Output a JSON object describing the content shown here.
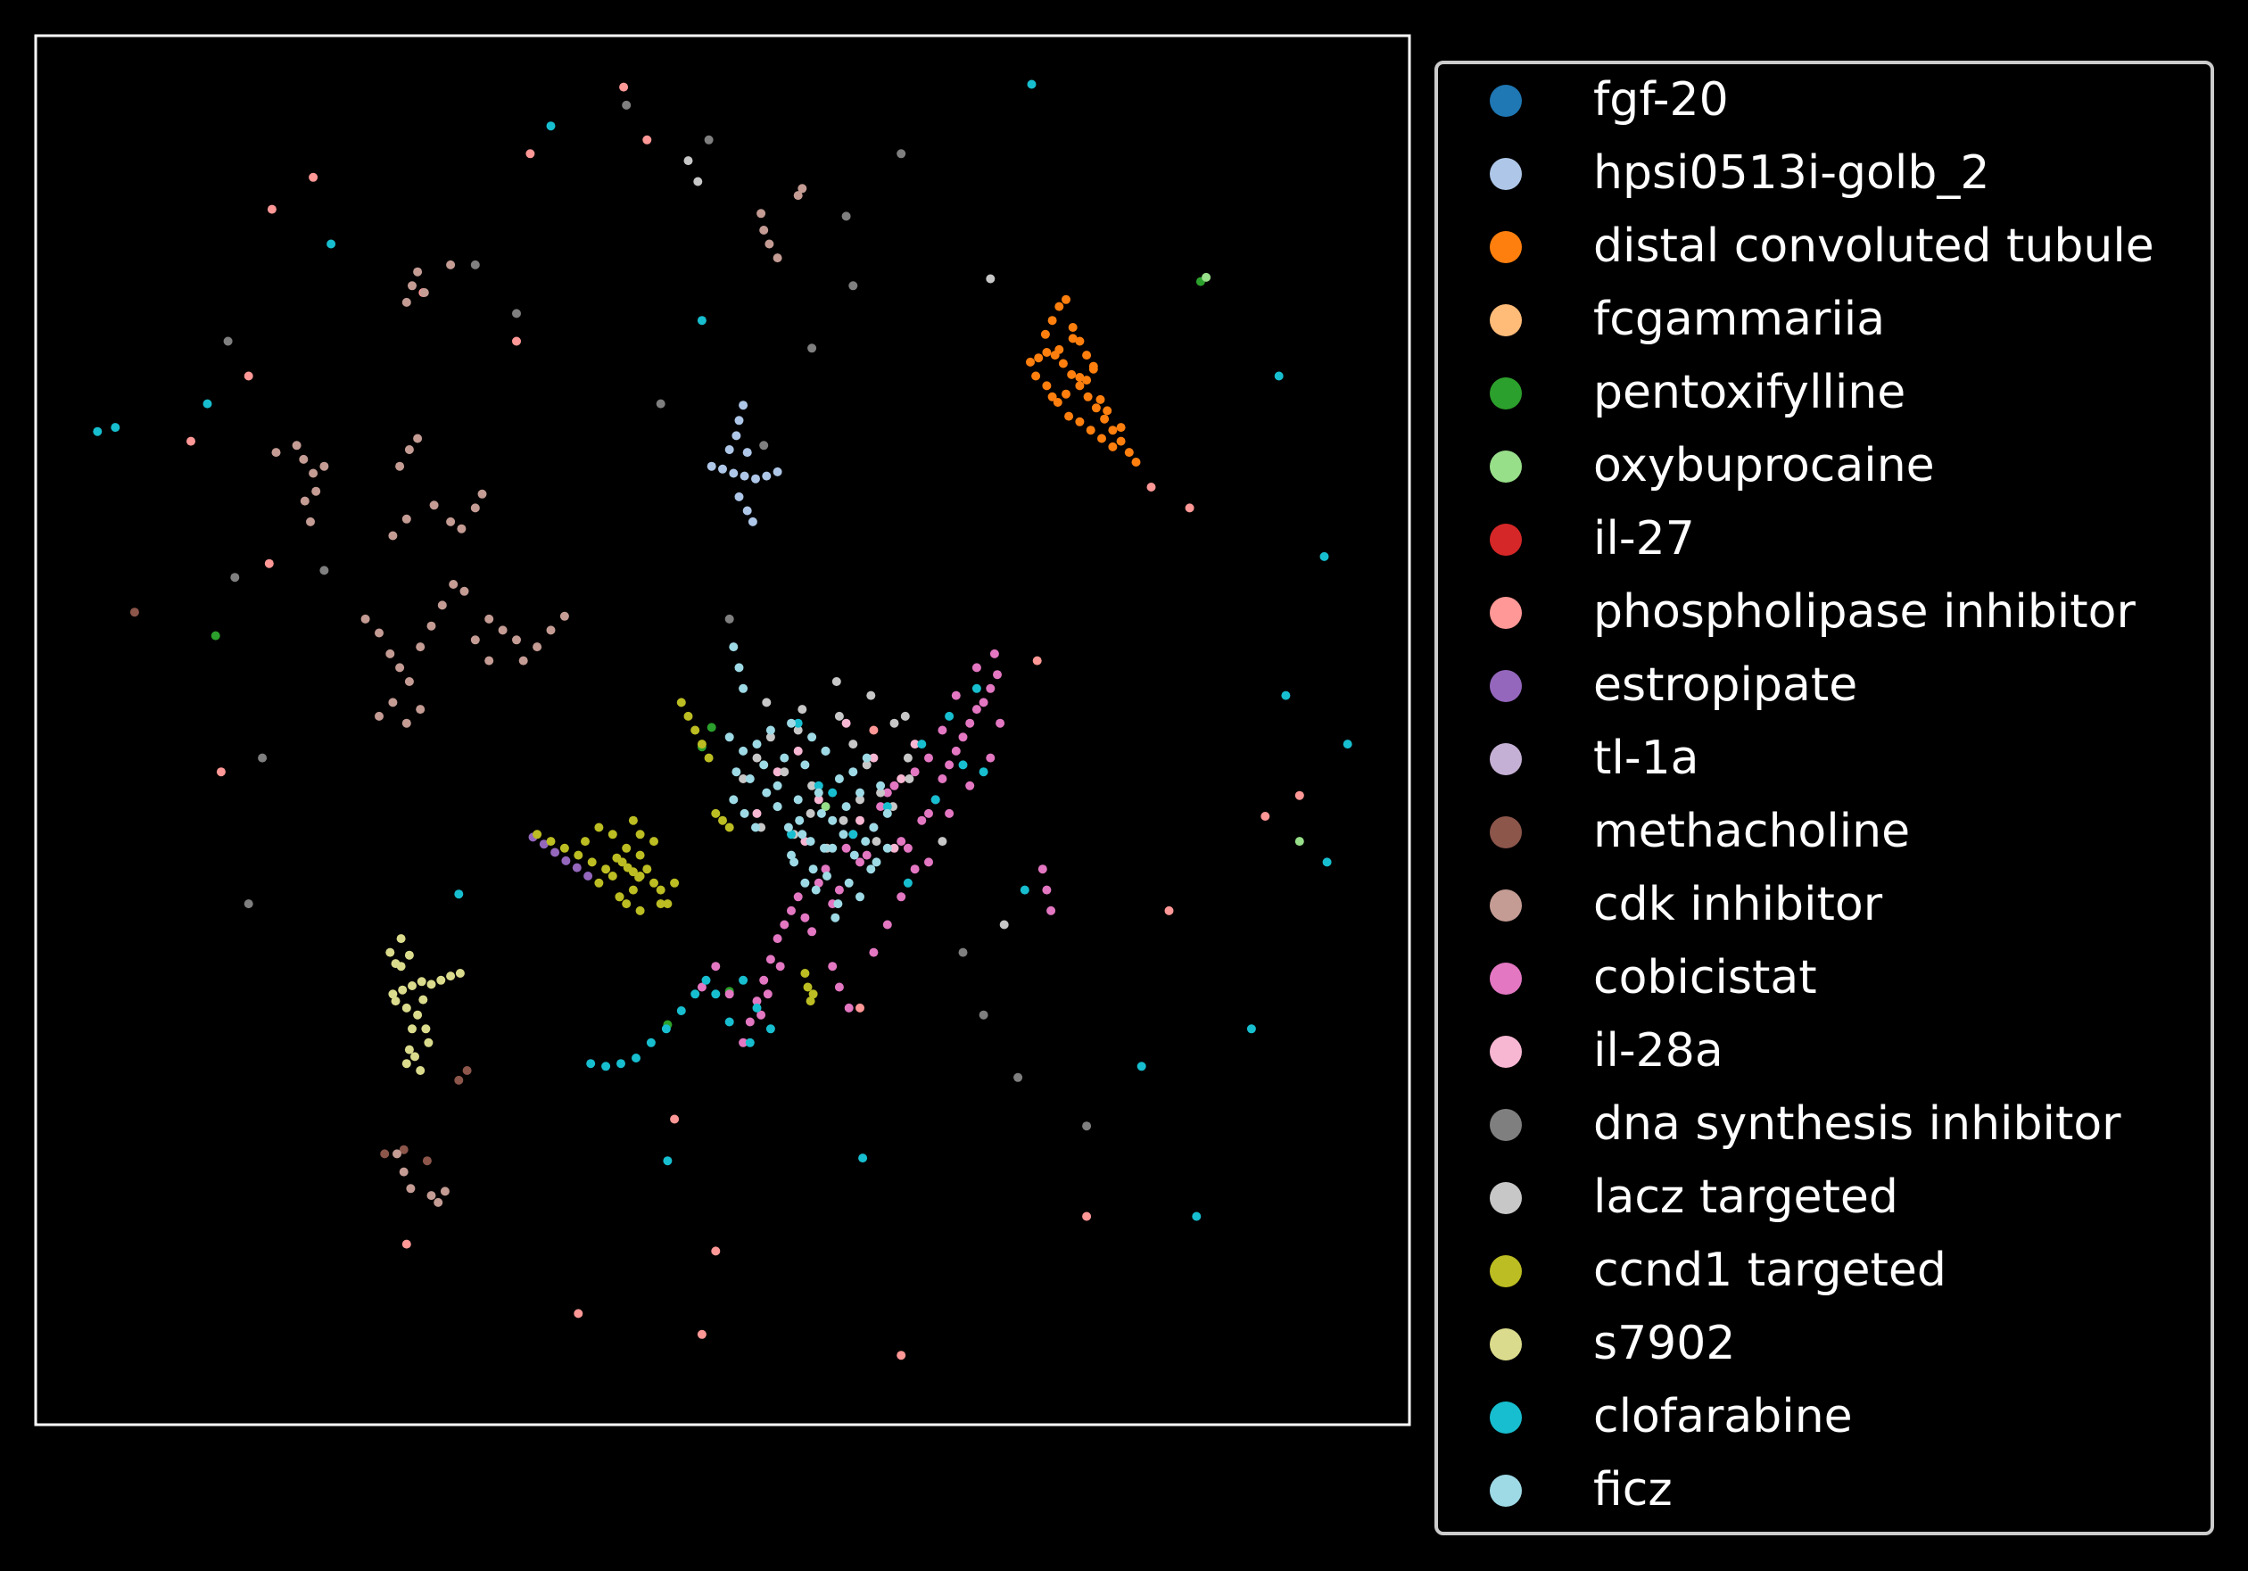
{
  "chart_data": {
    "type": "scatter",
    "title": "",
    "xlabel": "",
    "ylabel": "",
    "xlim": [
      0,
      100
    ],
    "ylim": [
      0,
      100
    ],
    "grid": false,
    "axis_ticks": false,
    "legend_position": "right-outside",
    "background": "#000000",
    "series": [
      {
        "name": "fgf-20",
        "color": "#1f77b4",
        "x": [],
        "y": []
      },
      {
        "name": "hpsi0513i-golb_2",
        "color": "#aec7e8",
        "x": [
          49.2,
          50.0,
          50.8,
          51.6,
          52.4,
          53.2,
          54.0,
          50.5,
          51.0,
          51.2,
          51.5,
          51.8,
          51.2,
          51.8,
          52.2
        ],
        "y": [
          69.0,
          68.8,
          68.5,
          68.3,
          68.1,
          68.3,
          68.6,
          70.2,
          71.2,
          72.3,
          73.4,
          70.0,
          66.8,
          65.8,
          65.0
        ]
      },
      {
        "name": "distal convoluted tubule",
        "color": "#ff7f0e",
        "x": [
          72.4,
          73.0,
          73.6,
          74.2,
          74.8,
          75.4,
          76.0,
          76.6,
          77.2,
          77.8,
          78.4,
          79.0,
          79.6,
          80.1,
          72.8,
          73.6,
          74.4,
          75.2,
          76.0,
          76.8,
          77.6,
          78.4,
          73.5,
          74.0,
          74.5,
          75.0,
          75.5,
          76.0,
          76.5,
          77.0,
          74.0,
          75.0,
          76.0,
          77.0,
          78.0,
          79.0,
          74.5,
          75.5,
          76.5,
          77.5
        ],
        "y": [
          76.5,
          76.8,
          77.2,
          77.0,
          76.4,
          75.6,
          74.8,
          74.0,
          73.2,
          72.4,
          71.6,
          70.8,
          70.0,
          69.3,
          75.5,
          74.8,
          73.6,
          72.6,
          72.2,
          71.6,
          71.0,
          70.4,
          78.5,
          79.5,
          80.5,
          81.0,
          79.0,
          78.0,
          77.0,
          76.0,
          74.0,
          74.2,
          75.4,
          76.2,
          73.0,
          71.8,
          77.4,
          78.2,
          75.2,
          73.8
        ]
      },
      {
        "name": "fcgammariia",
        "color": "#ffbb78",
        "x": [],
        "y": []
      },
      {
        "name": "pentoxifylline",
        "color": "#2ca02c",
        "x": [
          13.1,
          48.5,
          49.2,
          84.8,
          46.0,
          50.5
        ],
        "y": [
          56.8,
          48.8,
          50.2,
          82.3,
          28.8,
          31.2
        ]
      },
      {
        "name": "oxybuprocaine",
        "color": "#98df8a",
        "x": [
          85.2,
          92.0,
          57.5
        ],
        "y": [
          82.6,
          42.0,
          44.5
        ]
      },
      {
        "name": "il-27",
        "color": "#d62728",
        "x": [],
        "y": []
      },
      {
        "name": "phospholipase inhibitor",
        "color": "#ff9896",
        "x": [
          44.5,
          42.8,
          36.0,
          28.2,
          17.2,
          15.5,
          11.3,
          17.0,
          13.5,
          72.9,
          92.0,
          82.5,
          81.2,
          84.0,
          89.5,
          76.5,
          60.0,
          49.5,
          46.5,
          63.0,
          39.5,
          27.0,
          48.5,
          61.0,
          35.0,
          20.2
        ],
        "y": [
          92.5,
          96.3,
          91.5,
          81.5,
          87.5,
          75.5,
          70.8,
          62.0,
          47.0,
          55.0,
          45.3,
          37.0,
          67.5,
          66.0,
          43.8,
          15.0,
          30.0,
          12.5,
          22.0,
          5.0,
          8.0,
          13.0,
          6.5,
          50.0,
          78.0,
          89.8
        ]
      },
      {
        "name": "estropipate",
        "color": "#9467bd",
        "x": [
          36.2,
          37.0,
          37.8,
          38.6,
          39.4,
          40.2
        ],
        "y": [
          42.3,
          41.8,
          41.2,
          40.6,
          40.1,
          39.5
        ]
      },
      {
        "name": "tl-1a",
        "color": "#c5b0d5",
        "x": [],
        "y": []
      },
      {
        "name": "methacholine",
        "color": "#8c564b",
        "x": [
          7.2,
          25.4,
          26.8,
          30.8,
          31.4,
          28.5
        ],
        "y": [
          58.5,
          19.5,
          19.8,
          24.8,
          25.5,
          19.0
        ]
      },
      {
        "name": "cdk inhibitor",
        "color": "#c49c94",
        "x": [
          27.0,
          27.4,
          27.8,
          28.3,
          30.2,
          17.5,
          19.0,
          19.5,
          20.2,
          21.0,
          26.5,
          27.2,
          27.8,
          19.6,
          20.0,
          20.4,
          26.0,
          27.0,
          29.0,
          30.2,
          31.0,
          32.0,
          32.5,
          33.0,
          34.0,
          35.0,
          35.5,
          36.5,
          37.5,
          38.5,
          24.0,
          25.0,
          25.8,
          26.5,
          27.2,
          28.0,
          28.8,
          29.6,
          30.4,
          31.2,
          32.0,
          33.0,
          25.0,
          26.0,
          27.0,
          28.0,
          26.3,
          26.8,
          27.3,
          28.8,
          29.3,
          29.8,
          52.8,
          53.0,
          53.4,
          55.5,
          55.8,
          54.0
        ],
        "y": [
          80.8,
          82.0,
          83.0,
          81.5,
          83.5,
          70.0,
          70.5,
          69.5,
          68.5,
          69.0,
          69.0,
          70.2,
          71.0,
          66.5,
          65.0,
          67.2,
          64.0,
          65.2,
          66.2,
          65.0,
          64.5,
          66.0,
          67.0,
          58.0,
          57.2,
          56.5,
          55.0,
          56.0,
          57.2,
          58.2,
          58.0,
          57.0,
          55.5,
          54.5,
          53.5,
          56.0,
          57.5,
          59.0,
          60.5,
          60.0,
          56.5,
          55.0,
          51.0,
          52.0,
          50.5,
          51.5,
          19.5,
          18.2,
          17.0,
          16.5,
          16.0,
          16.8,
          87.2,
          86.0,
          85.0,
          88.5,
          89.0,
          84.0
        ]
      },
      {
        "name": "cobicistat",
        "color": "#e377c2",
        "x": [
          54.0,
          54.5,
          55.0,
          55.5,
          56.0,
          56.5,
          57.0,
          57.5,
          58.0,
          58.5,
          59.0,
          59.5,
          60.0,
          60.5,
          61.0,
          61.5,
          62.0,
          62.5,
          63.0,
          63.5,
          64.0,
          64.5,
          65.0,
          65.5,
          66.0,
          66.5,
          67.0,
          67.5,
          68.0,
          68.5,
          69.0,
          69.5,
          70.0,
          53.5,
          53.0,
          52.5,
          52.8,
          53.3,
          54.2,
          58.0,
          58.5,
          59.2,
          61.0,
          62.0,
          63.0,
          64.0,
          65.0,
          66.0,
          67.0,
          68.5,
          69.8,
          70.2,
          69.5,
          68.0,
          66.5,
          65.0,
          52.0,
          51.5,
          50.5,
          49.5,
          48.5,
          73.3,
          73.6,
          73.9
        ],
        "y": [
          35.0,
          36.0,
          37.0,
          38.0,
          36.5,
          35.5,
          39.0,
          40.0,
          37.5,
          38.5,
          41.5,
          42.5,
          40.5,
          41.0,
          43.0,
          44.5,
          45.5,
          46.0,
          42.0,
          41.5,
          40.0,
          43.5,
          44.0,
          45.0,
          46.5,
          47.5,
          48.5,
          49.5,
          50.5,
          51.5,
          52.0,
          53.0,
          54.0,
          33.5,
          32.0,
          30.5,
          29.5,
          31.0,
          33.0,
          33.0,
          31.5,
          30.0,
          34.0,
          36.0,
          38.0,
          47.0,
          48.0,
          50.0,
          52.5,
          54.5,
          55.5,
          50.5,
          48.0,
          46.0,
          44.0,
          40.5,
          29.0,
          27.5,
          31.0,
          33.0,
          31.5,
          40.0,
          38.5,
          37.0
        ]
      },
      {
        "name": "il-28a",
        "color": "#f7b6d2",
        "x": [
          54.0,
          55.5,
          57.0,
          59.0,
          61.0,
          63.0,
          52.5,
          56.0,
          60.0,
          62.5,
          64.0
        ],
        "y": [
          47.0,
          48.5,
          45.0,
          50.5,
          48.0,
          46.5,
          44.0,
          42.0,
          43.5,
          41.5,
          49.0
        ]
      },
      {
        "name": "dna synthesis inhibitor",
        "color": "#7f7f7f",
        "x": [
          43.0,
          49.0,
          59.0,
          63.0,
          32.0,
          35.0,
          14.5,
          16.5,
          15.5,
          21.0,
          14.0,
          45.5,
          67.5,
          69.0,
          71.5,
          76.5,
          53.0,
          50.5,
          56.5,
          59.5
        ],
        "y": [
          95.0,
          92.5,
          87.0,
          91.5,
          83.5,
          80.0,
          61.0,
          48.0,
          37.5,
          61.5,
          78.0,
          73.5,
          34.0,
          29.5,
          25.0,
          21.5,
          70.5,
          58.0,
          77.5,
          82.0
        ]
      },
      {
        "name": "lacz targeted",
        "color": "#c7c7c7",
        "x": [
          51.5,
          52.5,
          53.5,
          54.5,
          55.5,
          56.5,
          57.5,
          58.5,
          59.5,
          60.5,
          61.5,
          62.5,
          63.5,
          52.8,
          54.0,
          55.2,
          56.4,
          57.6,
          58.8,
          60.0,
          61.2,
          62.4,
          63.6,
          53.2,
          55.8,
          58.3,
          60.8,
          63.3,
          47.5,
          48.2,
          70.5,
          66.0,
          69.5
        ],
        "y": [
          46.5,
          48.0,
          49.5,
          47.0,
          50.0,
          46.0,
          48.5,
          51.0,
          49.0,
          47.5,
          45.5,
          50.5,
          48.0,
          43.0,
          44.5,
          42.5,
          44.0,
          41.5,
          43.5,
          45.0,
          42.0,
          44.5,
          46.5,
          52.0,
          51.5,
          53.5,
          52.5,
          51.0,
          91.0,
          89.5,
          36.0,
          42.0,
          82.5
        ]
      },
      {
        "name": "ccnd1 targeted",
        "color": "#bcbd22",
        "x": [
          36.5,
          37.5,
          38.5,
          39.5,
          40.5,
          41.5,
          42.0,
          42.5,
          43.0,
          43.5,
          44.0,
          44.5,
          45.0,
          45.5,
          46.0,
          46.5,
          40.0,
          41.0,
          42.0,
          43.0,
          44.0,
          45.0,
          41.0,
          42.5,
          44.0,
          45.5,
          43.5,
          44.0,
          42.3,
          42.7,
          43.1,
          43.5,
          43.9,
          47.0,
          47.5,
          48.0,
          48.5,
          49.0,
          49.5,
          50.0,
          50.5,
          56.0,
          56.2,
          56.4,
          56.6
        ],
        "y": [
          42.5,
          42.0,
          41.5,
          41.0,
          40.5,
          40.0,
          39.5,
          38.0,
          37.5,
          38.5,
          39.5,
          40.0,
          39.0,
          38.5,
          37.5,
          39.0,
          42.0,
          43.0,
          42.5,
          41.5,
          41.0,
          42.0,
          39.0,
          38.0,
          37.0,
          37.5,
          43.5,
          42.5,
          40.8,
          40.5,
          40.1,
          39.8,
          39.4,
          52.0,
          51.0,
          50.0,
          49.0,
          48.0,
          44.0,
          43.5,
          43.0,
          32.5,
          31.5,
          30.5,
          31.0
        ]
      },
      {
        "name": "s7902",
        "color": "#dbdb8d",
        "x": [
          26.0,
          26.7,
          27.4,
          28.1,
          28.8,
          29.5,
          30.2,
          30.9,
          25.8,
          26.2,
          26.6,
          27.0,
          27.4,
          27.8,
          28.2,
          27.2,
          27.0,
          27.6,
          28.0,
          28.6,
          28.4,
          27.2,
          26.6,
          26.2
        ],
        "y": [
          31.0,
          31.3,
          31.6,
          31.9,
          31.7,
          32.0,
          32.3,
          32.5,
          34.0,
          33.2,
          35.0,
          30.0,
          28.5,
          29.5,
          30.6,
          27.0,
          26.0,
          26.5,
          25.5,
          27.5,
          28.5,
          33.8,
          33.0,
          30.5
        ]
      },
      {
        "name": "clofarabine",
        "color": "#17becf",
        "x": [
          40.4,
          41.5,
          42.6,
          43.7,
          44.8,
          45.9,
          47.0,
          48.0,
          48.8,
          49.5,
          50.5,
          52.0,
          53.5,
          52.5,
          51.5,
          55.0,
          58.0,
          62.0,
          64.5,
          66.5,
          68.5,
          69.0,
          65.5,
          55.5,
          57.0,
          59.5,
          63.5,
          67.5,
          4.5,
          5.8,
          12.5,
          21.5,
          37.5,
          48.5,
          72.5,
          90.5,
          93.8,
          91.0,
          30.8,
          46.0,
          60.2,
          80.5,
          84.5,
          88.5,
          94.0,
          95.5,
          72.0
        ],
        "y": [
          26.0,
          25.8,
          26.0,
          26.4,
          27.5,
          28.5,
          29.8,
          31.0,
          32.0,
          31.0,
          29.0,
          27.5,
          28.5,
          30.0,
          32.0,
          42.5,
          45.5,
          44.5,
          49.0,
          51.0,
          53.0,
          47.0,
          45.0,
          50.5,
          46.0,
          42.5,
          39.0,
          47.5,
          71.5,
          71.8,
          73.5,
          85.0,
          93.5,
          79.5,
          96.5,
          75.5,
          62.5,
          52.5,
          38.2,
          19.0,
          19.2,
          25.8,
          15.0,
          28.5,
          40.5,
          49.0,
          38.5
        ]
      },
      {
        "name": "ficz",
        "color": "#9edae5",
        "x": [
          50.5,
          51.0,
          51.5,
          52.0,
          52.5,
          53.0,
          53.5,
          54.0,
          54.5,
          55.0,
          55.5,
          56.0,
          56.5,
          57.0,
          57.5,
          58.0,
          58.5,
          59.0,
          59.5,
          60.0,
          60.5,
          61.0,
          61.5,
          62.0,
          50.8,
          51.6,
          52.4,
          53.2,
          54.0,
          54.8,
          55.6,
          56.4,
          57.2,
          58.0,
          58.8,
          59.6,
          60.4,
          61.2,
          62.0,
          55.2,
          56.0,
          56.8,
          57.6,
          58.4,
          59.2,
          60.0,
          60.8,
          55.0,
          55.8,
          56.6,
          57.4,
          58.2,
          51.5,
          51.2,
          50.8
        ],
        "y": [
          49.5,
          47.0,
          48.5,
          46.5,
          49.0,
          47.5,
          50.0,
          46.0,
          48.0,
          50.5,
          45.0,
          47.5,
          49.5,
          45.5,
          48.5,
          43.5,
          46.5,
          44.5,
          47.0,
          45.5,
          48.0,
          43.0,
          46.0,
          44.0,
          45.0,
          44.0,
          43.0,
          45.5,
          44.5,
          43.0,
          43.5,
          42.0,
          44.0,
          41.5,
          42.5,
          41.0,
          42.0,
          40.5,
          41.5,
          40.5,
          39.0,
          38.5,
          39.5,
          37.5,
          39.0,
          38.0,
          40.0,
          41.0,
          42.5,
          40.0,
          41.5,
          36.5,
          53.0,
          54.5,
          56.0
        ]
      }
    ]
  }
}
